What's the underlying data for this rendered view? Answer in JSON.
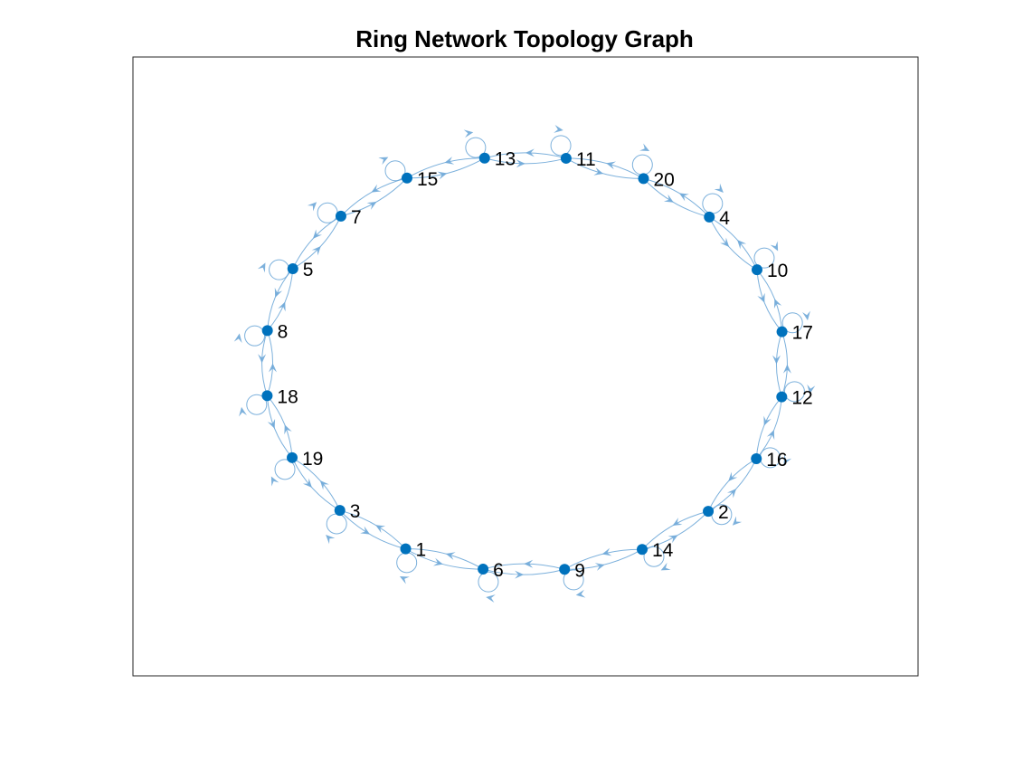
{
  "figure": {
    "title": "Ring Network Topology Graph"
  },
  "graph": {
    "directed": true,
    "self_loops": true,
    "node_color": "#0072BD",
    "edge_color": "#6FA9D8",
    "ring_order": [
      "11",
      "20",
      "4",
      "10",
      "17",
      "12",
      "16",
      "2",
      "14",
      "9",
      "6",
      "1",
      "3",
      "19",
      "18",
      "8",
      "5",
      "7",
      "15",
      "13"
    ],
    "edges": [
      [
        "11",
        "20"
      ],
      [
        "20",
        "11"
      ],
      [
        "20",
        "4"
      ],
      [
        "4",
        "20"
      ],
      [
        "4",
        "10"
      ],
      [
        "10",
        "4"
      ],
      [
        "10",
        "17"
      ],
      [
        "17",
        "10"
      ],
      [
        "17",
        "12"
      ],
      [
        "12",
        "17"
      ],
      [
        "12",
        "16"
      ],
      [
        "16",
        "12"
      ],
      [
        "16",
        "2"
      ],
      [
        "2",
        "16"
      ],
      [
        "2",
        "14"
      ],
      [
        "14",
        "2"
      ],
      [
        "14",
        "9"
      ],
      [
        "9",
        "14"
      ],
      [
        "9",
        "6"
      ],
      [
        "6",
        "9"
      ],
      [
        "6",
        "1"
      ],
      [
        "1",
        "6"
      ],
      [
        "1",
        "3"
      ],
      [
        "3",
        "1"
      ],
      [
        "3",
        "19"
      ],
      [
        "19",
        "3"
      ],
      [
        "19",
        "18"
      ],
      [
        "18",
        "19"
      ],
      [
        "18",
        "8"
      ],
      [
        "8",
        "18"
      ],
      [
        "8",
        "5"
      ],
      [
        "5",
        "8"
      ],
      [
        "5",
        "7"
      ],
      [
        "7",
        "5"
      ],
      [
        "7",
        "15"
      ],
      [
        "15",
        "7"
      ],
      [
        "15",
        "13"
      ],
      [
        "13",
        "15"
      ],
      [
        "13",
        "11"
      ],
      [
        "11",
        "13"
      ],
      [
        "1",
        "1"
      ],
      [
        "2",
        "2"
      ],
      [
        "3",
        "3"
      ],
      [
        "4",
        "4"
      ],
      [
        "5",
        "5"
      ],
      [
        "6",
        "6"
      ],
      [
        "7",
        "7"
      ],
      [
        "8",
        "8"
      ],
      [
        "9",
        "9"
      ],
      [
        "10",
        "10"
      ],
      [
        "11",
        "11"
      ],
      [
        "12",
        "12"
      ],
      [
        "13",
        "13"
      ],
      [
        "14",
        "14"
      ],
      [
        "15",
        "15"
      ],
      [
        "16",
        "16"
      ],
      [
        "17",
        "17"
      ],
      [
        "18",
        "18"
      ],
      [
        "19",
        "19"
      ],
      [
        "20",
        "20"
      ]
    ]
  }
}
